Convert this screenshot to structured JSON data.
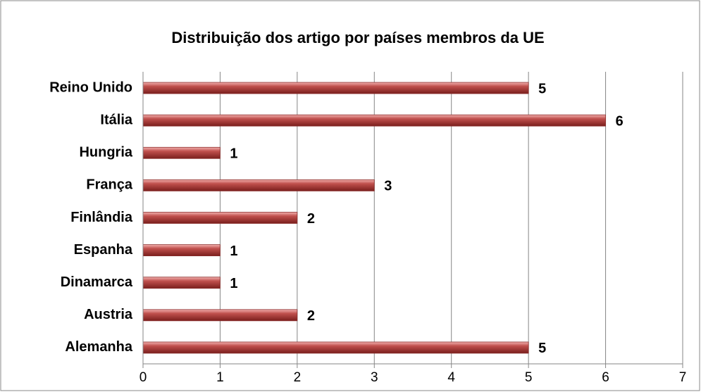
{
  "chart_data": {
    "type": "bar",
    "title": "Distribuição dos artigo por países membros da UE",
    "categories": [
      "Reino Unido",
      "Itália",
      "Hungria",
      "França",
      "Finlândia",
      "Espanha",
      "Dinamarca",
      "Austria",
      "Alemanha"
    ],
    "values": [
      5,
      6,
      1,
      3,
      2,
      1,
      1,
      2,
      5
    ],
    "color": "#c0504d",
    "xlim": [
      0,
      7
    ],
    "xticks": [
      0,
      1,
      2,
      3,
      4,
      5,
      6,
      7
    ],
    "grid": true
  }
}
